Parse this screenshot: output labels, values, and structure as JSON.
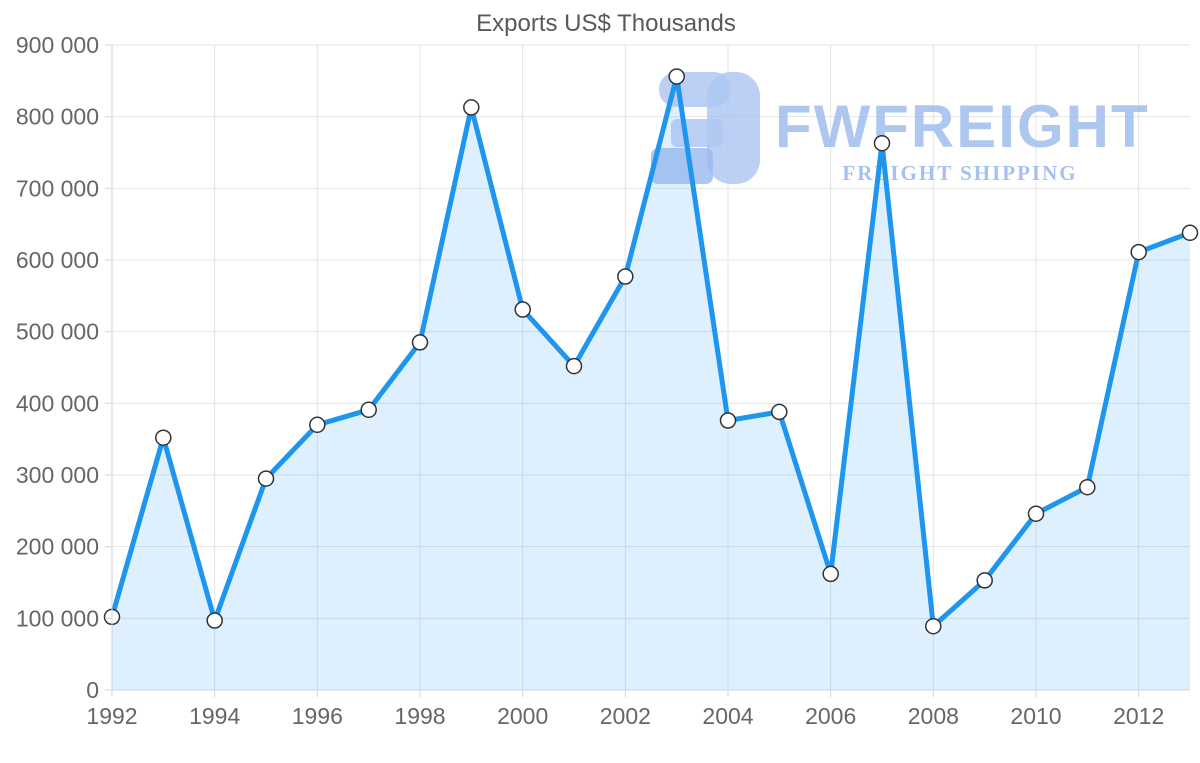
{
  "title": "Exports US$ Thousands",
  "watermark": {
    "brand": "FWFREIGHT",
    "tagline": "FREIGHT SHIPPING",
    "logo_color": "#a7c2f1",
    "logo_accent_color": "#8db1ec",
    "text_color": "#a5c1f0"
  },
  "chart_data": {
    "type": "area",
    "title": "Exports US$ Thousands",
    "xlabel": "",
    "ylabel": "",
    "x": [
      1992,
      1993,
      1994,
      1995,
      1996,
      1997,
      1998,
      1999,
      2000,
      2001,
      2002,
      2003,
      2004,
      2005,
      2006,
      2007,
      2008,
      2009,
      2010,
      2011,
      2012,
      2013
    ],
    "series": [
      {
        "name": "Exports US$ Thousands",
        "values": [
          102000,
          352000,
          97000,
          295000,
          370000,
          391000,
          485000,
          813000,
          531000,
          452000,
          577000,
          856000,
          376000,
          388000,
          162000,
          763000,
          89000,
          153000,
          246000,
          283000,
          611000,
          638000
        ]
      }
    ],
    "ylim": [
      0,
      900000
    ],
    "y_tick_step": 100000,
    "y_tick_labels": [
      "0",
      "100 000",
      "200 000",
      "300 000",
      "400 000",
      "500 000",
      "600 000",
      "700 000",
      "800 000",
      "900 000"
    ],
    "x_tick_labels": [
      "1992",
      "1994",
      "1996",
      "1998",
      "2000",
      "2002",
      "2004",
      "2006",
      "2008",
      "2010",
      "2012"
    ],
    "grid": true,
    "legend": "none",
    "marker": "circle",
    "colors": {
      "line": "#1e96f0",
      "area_fill": "rgba(33,150,243,0.15)",
      "marker_fill": "#ffffff",
      "marker_stroke": "#333333",
      "gridline": "#e5e5e5",
      "axis_line": "#ccd6dd",
      "tick": "#ccd6dd",
      "label": "#666666",
      "title": "#58595b"
    }
  }
}
